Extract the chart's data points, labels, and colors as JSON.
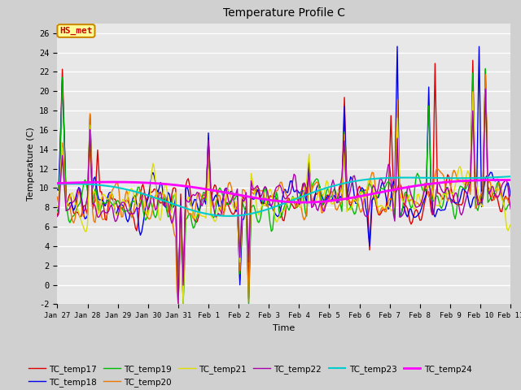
{
  "title": "Temperature Profile C",
  "xlabel": "Time",
  "ylabel": "Temperature (C)",
  "ylim": [
    -2,
    27
  ],
  "background_color": "#e0e0e0",
  "plot_bg": "#e8e8e8",
  "annotation_text": "HS_met",
  "annotation_color": "#cc0000",
  "annotation_bg": "#ffff99",
  "annotation_border": "#cc8800",
  "xtick_labels": [
    "Jan 27",
    "Jan 28",
    "Jan 29",
    "Jan 30",
    "Jan 31",
    "Feb 1",
    "Feb 2",
    "Feb 3",
    "Feb 4",
    "Feb 5",
    "Feb 6",
    "Feb 7",
    "Feb 8",
    "Feb 9",
    "Feb 10",
    "Feb 11"
  ],
  "series": {
    "TC_temp17": {
      "color": "#dd0000",
      "lw": 1.0
    },
    "TC_temp18": {
      "color": "#0000ee",
      "lw": 1.0
    },
    "TC_temp19": {
      "color": "#00bb00",
      "lw": 1.0
    },
    "TC_temp20": {
      "color": "#ee7700",
      "lw": 1.0
    },
    "TC_temp21": {
      "color": "#dddd00",
      "lw": 1.0
    },
    "TC_temp22": {
      "color": "#aa00aa",
      "lw": 1.0
    },
    "TC_temp23": {
      "color": "#00cccc",
      "lw": 1.5
    },
    "TC_temp24": {
      "color": "#ff00ff",
      "lw": 2.0
    }
  }
}
